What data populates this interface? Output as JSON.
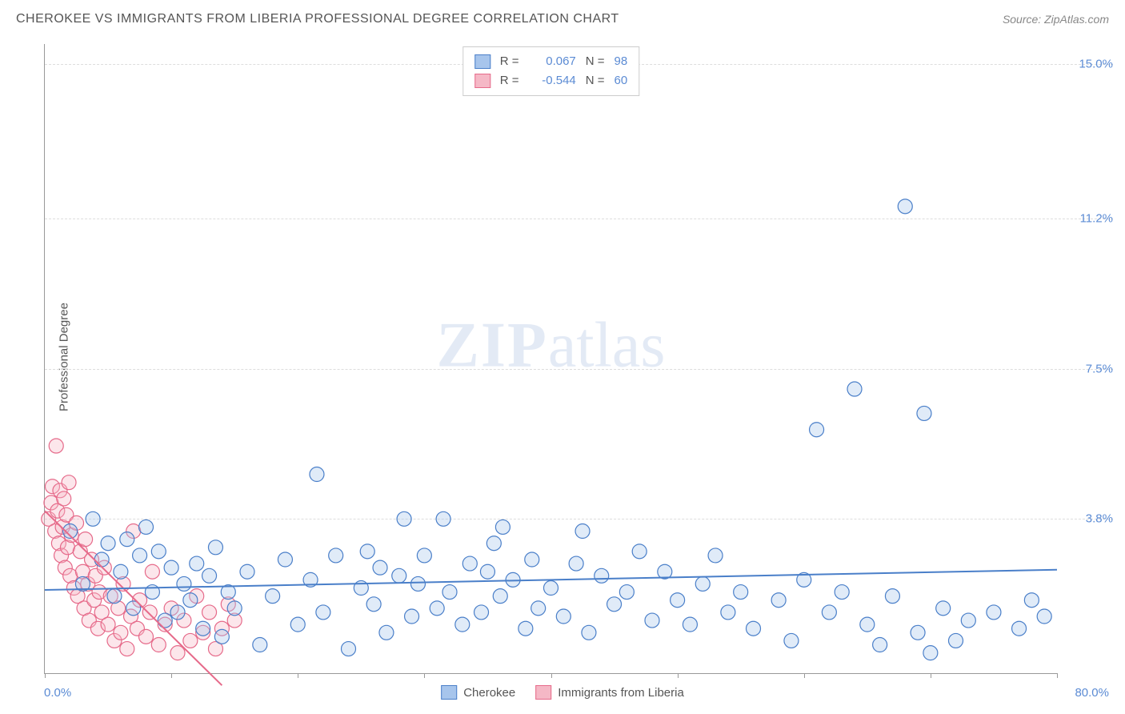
{
  "title": "CHEROKEE VS IMMIGRANTS FROM LIBERIA PROFESSIONAL DEGREE CORRELATION CHART",
  "source": "Source: ZipAtlas.com",
  "ylabel": "Professional Degree",
  "watermark": {
    "zip": "ZIP",
    "atlas": "atlas"
  },
  "chart": {
    "type": "scatter",
    "background_color": "#ffffff",
    "grid_color": "#dddddd",
    "axis_color": "#999999",
    "xlim": [
      0,
      80
    ],
    "ylim": [
      0,
      15.5
    ],
    "yticks": [
      {
        "value": 3.8,
        "label": "3.8%"
      },
      {
        "value": 7.5,
        "label": "7.5%"
      },
      {
        "value": 11.2,
        "label": "11.2%"
      },
      {
        "value": 15.0,
        "label": "15.0%"
      }
    ],
    "xticks": [
      0,
      10,
      20,
      30,
      40,
      50,
      60,
      70,
      80
    ],
    "xaxis_min_label": "0.0%",
    "xaxis_max_label": "80.0%",
    "marker_radius": 9,
    "marker_fill_opacity": 0.35,
    "marker_stroke_width": 1.2,
    "trend_line_width": 2
  },
  "series_a": {
    "name": "Cherokee",
    "color_fill": "#a7c5ec",
    "color_stroke": "#4a7fc9",
    "r": "0.067",
    "n": "98",
    "trend": {
      "x1": 0,
      "y1": 2.05,
      "x2": 80,
      "y2": 2.55
    },
    "points": [
      [
        2,
        3.5
      ],
      [
        3,
        2.2
      ],
      [
        3.8,
        3.8
      ],
      [
        4.5,
        2.8
      ],
      [
        5,
        3.2
      ],
      [
        5.5,
        1.9
      ],
      [
        6,
        2.5
      ],
      [
        6.5,
        3.3
      ],
      [
        7,
        1.6
      ],
      [
        7.5,
        2.9
      ],
      [
        8,
        3.6
      ],
      [
        8.5,
        2.0
      ],
      [
        9,
        3.0
      ],
      [
        9.5,
        1.3
      ],
      [
        10,
        2.6
      ],
      [
        10.5,
        1.5
      ],
      [
        11,
        2.2
      ],
      [
        11.5,
        1.8
      ],
      [
        12,
        2.7
      ],
      [
        12.5,
        1.1
      ],
      [
        13,
        2.4
      ],
      [
        13.5,
        3.1
      ],
      [
        14,
        0.9
      ],
      [
        14.5,
        2.0
      ],
      [
        15,
        1.6
      ],
      [
        16,
        2.5
      ],
      [
        17,
        0.7
      ],
      [
        18,
        1.9
      ],
      [
        19,
        2.8
      ],
      [
        20,
        1.2
      ],
      [
        21,
        2.3
      ],
      [
        21.5,
        4.9
      ],
      [
        22,
        1.5
      ],
      [
        23,
        2.9
      ],
      [
        24,
        0.6
      ],
      [
        25,
        2.1
      ],
      [
        25.5,
        3.0
      ],
      [
        26,
        1.7
      ],
      [
        26.5,
        2.6
      ],
      [
        27,
        1.0
      ],
      [
        28,
        2.4
      ],
      [
        28.4,
        3.8
      ],
      [
        29,
        1.4
      ],
      [
        29.5,
        2.2
      ],
      [
        30,
        2.9
      ],
      [
        31,
        1.6
      ],
      [
        31.5,
        3.8
      ],
      [
        32,
        2.0
      ],
      [
        33,
        1.2
      ],
      [
        33.6,
        2.7
      ],
      [
        34.5,
        1.5
      ],
      [
        35,
        2.5
      ],
      [
        35.5,
        3.2
      ],
      [
        36,
        1.9
      ],
      [
        36.2,
        3.6
      ],
      [
        37,
        2.3
      ],
      [
        38,
        1.1
      ],
      [
        38.5,
        2.8
      ],
      [
        39,
        1.6
      ],
      [
        40,
        2.1
      ],
      [
        41,
        1.4
      ],
      [
        42,
        2.7
      ],
      [
        42.5,
        3.5
      ],
      [
        43,
        1.0
      ],
      [
        44,
        2.4
      ],
      [
        45,
        1.7
      ],
      [
        46,
        2.0
      ],
      [
        47,
        3.0
      ],
      [
        48,
        1.3
      ],
      [
        49,
        2.5
      ],
      [
        50,
        1.8
      ],
      [
        51,
        1.2
      ],
      [
        52,
        2.2
      ],
      [
        53,
        2.9
      ],
      [
        54,
        1.5
      ],
      [
        55,
        2.0
      ],
      [
        56,
        1.1
      ],
      [
        58,
        1.8
      ],
      [
        59,
        0.8
      ],
      [
        60,
        2.3
      ],
      [
        61,
        6.0
      ],
      [
        62,
        1.5
      ],
      [
        63,
        2.0
      ],
      [
        64,
        7.0
      ],
      [
        65,
        1.2
      ],
      [
        66,
        0.7
      ],
      [
        67,
        1.9
      ],
      [
        68,
        11.5
      ],
      [
        69,
        1.0
      ],
      [
        69.5,
        6.4
      ],
      [
        70,
        0.5
      ],
      [
        71,
        1.6
      ],
      [
        72,
        0.8
      ],
      [
        73,
        1.3
      ],
      [
        75,
        1.5
      ],
      [
        77,
        1.1
      ],
      [
        78,
        1.8
      ],
      [
        79,
        1.4
      ]
    ]
  },
  "series_b": {
    "name": "Immigrants from Liberia",
    "color_fill": "#f5b8c6",
    "color_stroke": "#e66a8a",
    "r": "-0.544",
    "n": "60",
    "trend": {
      "x1": 0,
      "y1": 4.0,
      "x2": 14,
      "y2": -0.3
    },
    "points": [
      [
        0.3,
        3.8
      ],
      [
        0.5,
        4.2
      ],
      [
        0.6,
        4.6
      ],
      [
        0.8,
        3.5
      ],
      [
        0.9,
        5.6
      ],
      [
        1.0,
        4.0
      ],
      [
        1.1,
        3.2
      ],
      [
        1.2,
        4.5
      ],
      [
        1.3,
        2.9
      ],
      [
        1.4,
        3.6
      ],
      [
        1.5,
        4.3
      ],
      [
        1.6,
        2.6
      ],
      [
        1.7,
        3.9
      ],
      [
        1.8,
        3.1
      ],
      [
        1.9,
        4.7
      ],
      [
        2.0,
        2.4
      ],
      [
        2.1,
        3.4
      ],
      [
        2.3,
        2.1
      ],
      [
        2.5,
        3.7
      ],
      [
        2.6,
        1.9
      ],
      [
        2.8,
        3.0
      ],
      [
        3.0,
        2.5
      ],
      [
        3.1,
        1.6
      ],
      [
        3.2,
        3.3
      ],
      [
        3.4,
        2.2
      ],
      [
        3.5,
        1.3
      ],
      [
        3.7,
        2.8
      ],
      [
        3.9,
        1.8
      ],
      [
        4.0,
        2.4
      ],
      [
        4.2,
        1.1
      ],
      [
        4.3,
        2.0
      ],
      [
        4.5,
        1.5
      ],
      [
        4.7,
        2.6
      ],
      [
        5.0,
        1.2
      ],
      [
        5.2,
        1.9
      ],
      [
        5.5,
        0.8
      ],
      [
        5.8,
        1.6
      ],
      [
        6.0,
        1.0
      ],
      [
        6.2,
        2.2
      ],
      [
        6.5,
        0.6
      ],
      [
        6.8,
        1.4
      ],
      [
        7.0,
        3.5
      ],
      [
        7.3,
        1.1
      ],
      [
        7.5,
        1.8
      ],
      [
        8.0,
        0.9
      ],
      [
        8.3,
        1.5
      ],
      [
        8.5,
        2.5
      ],
      [
        9.0,
        0.7
      ],
      [
        9.5,
        1.2
      ],
      [
        10.0,
        1.6
      ],
      [
        10.5,
        0.5
      ],
      [
        11.0,
        1.3
      ],
      [
        11.5,
        0.8
      ],
      [
        12.0,
        1.9
      ],
      [
        12.5,
        1.0
      ],
      [
        13.0,
        1.5
      ],
      [
        13.5,
        0.6
      ],
      [
        14.0,
        1.1
      ],
      [
        14.5,
        1.7
      ],
      [
        15.0,
        1.3
      ]
    ]
  },
  "legend_labels": {
    "r": "R =",
    "n": "N ="
  }
}
